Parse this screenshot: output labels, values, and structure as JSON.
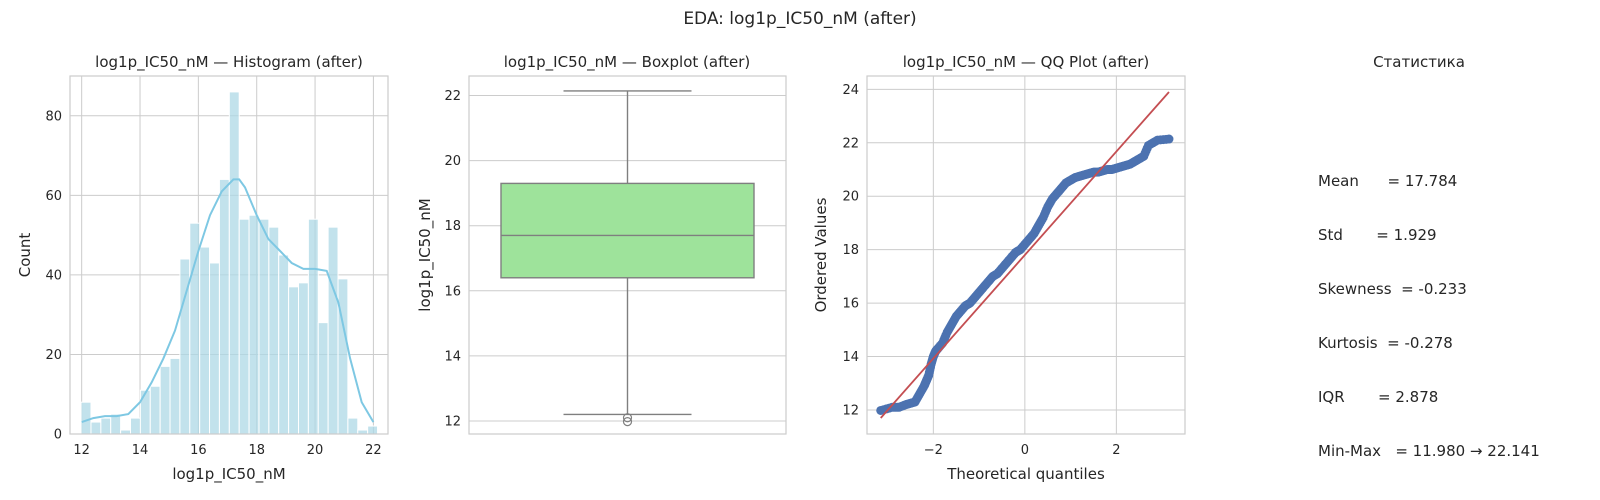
{
  "figure": {
    "suptitle": "EDA: log1p_IC50_nM (after)"
  },
  "colors": {
    "hist_fill": "#add8e6",
    "kde_line": "#7ec8e3",
    "box_fill": "#9ee39b",
    "box_line": "#7f7f7f",
    "qq_points": "#4c72b0",
    "qq_line": "#c44e52",
    "grid": "#cccccc",
    "frame": "#cccccc"
  },
  "chart_data": [
    {
      "type": "bar",
      "subtype": "histogram-with-kde",
      "title": "log1p_IC50_nM — Histogram (after)",
      "xlabel": "log1p_IC50_nM",
      "ylabel": "Count",
      "xlim": [
        11.6,
        22.5
      ],
      "ylim": [
        0,
        90
      ],
      "xticks": [
        12,
        14,
        16,
        18,
        20,
        22
      ],
      "yticks": [
        0,
        20,
        40,
        60,
        80
      ],
      "grid": true,
      "bin_edges": [
        11.98,
        12.319,
        12.658,
        12.996,
        13.335,
        13.674,
        14.012,
        14.351,
        14.69,
        15.029,
        15.367,
        15.706,
        16.045,
        16.383,
        16.722,
        17.061,
        17.4,
        17.738,
        18.077,
        18.416,
        18.754,
        19.093,
        19.432,
        19.771,
        20.109,
        20.448,
        20.787,
        21.125,
        21.464,
        21.803,
        22.141
      ],
      "counts": [
        8,
        3,
        4,
        5,
        1,
        4,
        11,
        12,
        17,
        19,
        44,
        53,
        47,
        43,
        64,
        86,
        54,
        55,
        54,
        52,
        45,
        37,
        38,
        54,
        28,
        52,
        39,
        4,
        1,
        2
      ],
      "kde": {
        "x": [
          12.0,
          12.4,
          12.8,
          13.2,
          13.6,
          14.0,
          14.4,
          14.8,
          15.2,
          15.6,
          16.0,
          16.4,
          16.8,
          17.2,
          17.4,
          17.6,
          18.0,
          18.4,
          18.8,
          19.2,
          19.6,
          20.0,
          20.4,
          20.8,
          21.2,
          21.6,
          22.0
        ],
        "y": [
          3,
          4,
          4.5,
          4.5,
          5,
          8,
          13,
          19,
          26,
          36,
          46,
          55,
          61,
          64,
          64,
          62,
          55,
          49,
          46,
          43,
          41.5,
          41.5,
          41,
          33,
          19,
          8,
          3
        ]
      }
    },
    {
      "type": "box",
      "title": "log1p_IC50_nM — Boxplot (after)",
      "xlabel": "",
      "ylabel": "log1p_IC50_nM",
      "ylim": [
        11.6,
        22.6
      ],
      "yticks": [
        12,
        14,
        16,
        18,
        20,
        22
      ],
      "grid": true,
      "whisker_low": 12.2,
      "q1": 16.4,
      "median": 17.7,
      "q3": 19.3,
      "whisker_high": 22.141,
      "outliers": [
        11.98,
        12.1
      ]
    },
    {
      "type": "scatter",
      "subtype": "qq-plot",
      "title": "log1p_IC50_nM — QQ Plot (after)",
      "xlabel": "Theoretical quantiles",
      "ylabel": "Ordered Values",
      "xlim": [
        -3.45,
        3.5
      ],
      "ylim": [
        11.1,
        24.5
      ],
      "xticks": [
        -2,
        0,
        2
      ],
      "yticks": [
        12,
        14,
        16,
        18,
        20,
        22,
        24
      ],
      "grid": true,
      "reference_line": {
        "x": [
          -3.15,
          3.15
        ],
        "y": [
          11.7,
          23.9
        ]
      },
      "points": {
        "x": [
          -3.15,
          -2.9,
          -2.75,
          -2.6,
          -2.5,
          -2.4,
          -2.3,
          -2.2,
          -2.15,
          -2.1,
          -2.05,
          -2.0,
          -1.95,
          -1.9,
          -1.8,
          -1.7,
          -1.6,
          -1.5,
          -1.4,
          -1.3,
          -1.2,
          -1.1,
          -1.0,
          -0.9,
          -0.8,
          -0.7,
          -0.6,
          -0.5,
          -0.4,
          -0.3,
          -0.2,
          -0.1,
          0.0,
          0.1,
          0.2,
          0.3,
          0.4,
          0.5,
          0.6,
          0.7,
          0.8,
          0.9,
          1.0,
          1.1,
          1.2,
          1.3,
          1.4,
          1.5,
          1.6,
          1.7,
          1.8,
          1.9,
          2.0,
          2.1,
          2.2,
          2.3,
          2.4,
          2.5,
          2.6,
          2.7,
          2.9,
          3.15
        ],
        "y": [
          11.98,
          12.1,
          12.1,
          12.2,
          12.25,
          12.3,
          12.6,
          12.9,
          13.1,
          13.3,
          13.7,
          14.0,
          14.2,
          14.3,
          14.5,
          14.9,
          15.2,
          15.5,
          15.7,
          15.9,
          16.0,
          16.2,
          16.4,
          16.6,
          16.8,
          17.0,
          17.1,
          17.3,
          17.5,
          17.7,
          17.9,
          18.0,
          18.2,
          18.4,
          18.6,
          18.9,
          19.2,
          19.6,
          19.9,
          20.1,
          20.3,
          20.5,
          20.6,
          20.7,
          20.75,
          20.8,
          20.85,
          20.9,
          20.9,
          20.95,
          21.0,
          21.0,
          21.05,
          21.1,
          21.15,
          21.2,
          21.3,
          21.4,
          21.5,
          21.9,
          22.1,
          22.14
        ]
      }
    }
  ],
  "stats": {
    "title": "Статистика",
    "lines": [
      "Mean      = 17.784",
      "Std       = 1.929",
      "Skewness  = -0.233",
      "Kurtosis  = -0.278",
      "IQR       = 2.878",
      "Min-Max   = 11.980 → 22.141"
    ]
  }
}
